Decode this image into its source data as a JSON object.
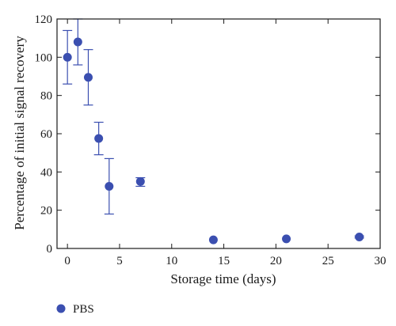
{
  "chart_data": {
    "type": "scatter",
    "xlabel": "Storage time (days)",
    "ylabel": "Percentage of initial signal recovery",
    "xlim": [
      -1,
      30
    ],
    "ylim": [
      0,
      120
    ],
    "x_ticks": [
      0,
      5,
      10,
      15,
      20,
      25,
      30
    ],
    "y_ticks": [
      0,
      20,
      40,
      60,
      80,
      100,
      120
    ],
    "grid": false,
    "legend_position": "bottom-left",
    "series": [
      {
        "name": "PBS",
        "color": "#3b4fb0",
        "points": [
          {
            "x": 0,
            "y": 100,
            "err_low": 86,
            "err_high": 114
          },
          {
            "x": 1,
            "y": 108,
            "err_low": 96,
            "err_high": 120
          },
          {
            "x": 2,
            "y": 89.5,
            "err_low": 75,
            "err_high": 104
          },
          {
            "x": 3,
            "y": 57.5,
            "err_low": 49,
            "err_high": 66
          },
          {
            "x": 4,
            "y": 32.5,
            "err_low": 18,
            "err_high": 47
          },
          {
            "x": 7,
            "y": 35,
            "err_low": 32.5,
            "err_high": 37
          },
          {
            "x": 14,
            "y": 4.5,
            "err_low": 4.5,
            "err_high": 4.5
          },
          {
            "x": 21,
            "y": 5,
            "err_low": 5,
            "err_high": 5
          },
          {
            "x": 28,
            "y": 6,
            "err_low": 5.5,
            "err_high": 6.5
          }
        ]
      }
    ]
  }
}
